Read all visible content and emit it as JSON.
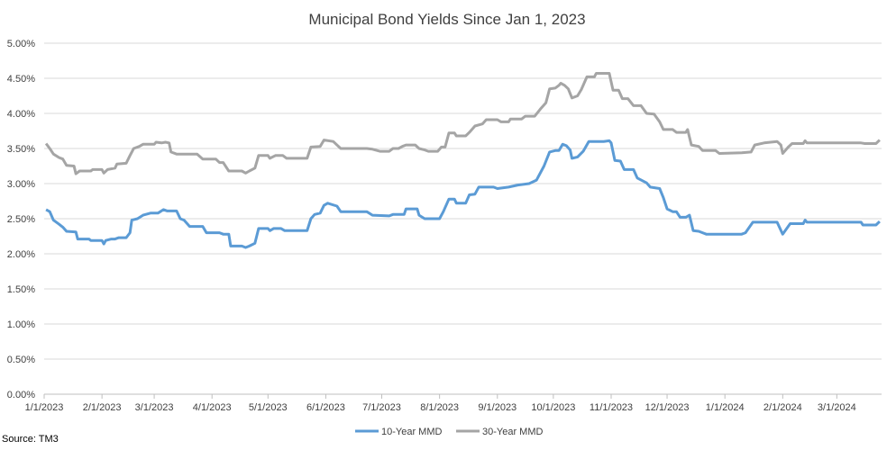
{
  "source_note": "Source: TM3",
  "chart_data": {
    "type": "line",
    "title": "Municipal Bond Yields Since Jan 1, 2023",
    "xlabel": "",
    "ylabel": "",
    "x_range": [
      "2023-01-01",
      "2024-03-25"
    ],
    "ylim": [
      0,
      5
    ],
    "y_ticks": [
      "0.00%",
      "0.50%",
      "1.00%",
      "1.50%",
      "2.00%",
      "2.50%",
      "3.00%",
      "3.50%",
      "4.00%",
      "4.50%",
      "5.00%"
    ],
    "x_tick_labels": [
      "1/1/2023",
      "2/1/2023",
      "3/1/2023",
      "4/1/2023",
      "5/1/2023",
      "6/1/2023",
      "7/1/2023",
      "8/1/2023",
      "9/1/2023",
      "10/1/2023",
      "11/1/2023",
      "12/1/2023",
      "1/1/2024",
      "2/1/2024",
      "3/1/2024"
    ],
    "x_tick_dates": [
      "2023-01-01",
      "2023-02-01",
      "2023-03-01",
      "2023-04-01",
      "2023-05-01",
      "2023-06-01",
      "2023-07-01",
      "2023-08-01",
      "2023-09-01",
      "2023-10-01",
      "2023-11-01",
      "2023-12-01",
      "2024-01-01",
      "2024-02-01",
      "2024-03-01"
    ],
    "grid": "horizontal",
    "legend_position": "bottom",
    "series": [
      {
        "name": "10-Year MMD",
        "color": "#5b9bd5",
        "points": [
          [
            "2023-01-02",
            2.63
          ],
          [
            "2023-01-04",
            2.6
          ],
          [
            "2023-01-06",
            2.48
          ],
          [
            "2023-01-09",
            2.42
          ],
          [
            "2023-01-11",
            2.38
          ],
          [
            "2023-01-13",
            2.32
          ],
          [
            "2023-01-18",
            2.31
          ],
          [
            "2023-01-19",
            2.21
          ],
          [
            "2023-01-25",
            2.21
          ],
          [
            "2023-01-26",
            2.19
          ],
          [
            "2023-02-01",
            2.19
          ],
          [
            "2023-02-02",
            2.14
          ],
          [
            "2023-02-03",
            2.19
          ],
          [
            "2023-02-06",
            2.21
          ],
          [
            "2023-02-08",
            2.21
          ],
          [
            "2023-02-10",
            2.23
          ],
          [
            "2023-02-14",
            2.23
          ],
          [
            "2023-02-16",
            2.3
          ],
          [
            "2023-02-17",
            2.48
          ],
          [
            "2023-02-20",
            2.5
          ],
          [
            "2023-02-23",
            2.55
          ],
          [
            "2023-02-27",
            2.58
          ],
          [
            "2023-03-03",
            2.58
          ],
          [
            "2023-03-06",
            2.63
          ],
          [
            "2023-03-08",
            2.61
          ],
          [
            "2023-03-13",
            2.61
          ],
          [
            "2023-03-15",
            2.5
          ],
          [
            "2023-03-17",
            2.48
          ],
          [
            "2023-03-20",
            2.39
          ],
          [
            "2023-03-27",
            2.39
          ],
          [
            "2023-03-29",
            2.3
          ],
          [
            "2023-04-05",
            2.3
          ],
          [
            "2023-04-07",
            2.28
          ],
          [
            "2023-04-10",
            2.28
          ],
          [
            "2023-04-11",
            2.11
          ],
          [
            "2023-04-17",
            2.11
          ],
          [
            "2023-04-19",
            2.09
          ],
          [
            "2023-04-21",
            2.11
          ],
          [
            "2023-04-24",
            2.15
          ],
          [
            "2023-04-26",
            2.36
          ],
          [
            "2023-05-01",
            2.36
          ],
          [
            "2023-05-02",
            2.33
          ],
          [
            "2023-05-04",
            2.36
          ],
          [
            "2023-05-08",
            2.36
          ],
          [
            "2023-05-10",
            2.33
          ],
          [
            "2023-05-22",
            2.33
          ],
          [
            "2023-05-24",
            2.5
          ],
          [
            "2023-05-26",
            2.56
          ],
          [
            "2023-05-29",
            2.58
          ],
          [
            "2023-05-31",
            2.69
          ],
          [
            "2023-06-02",
            2.72
          ],
          [
            "2023-06-07",
            2.68
          ],
          [
            "2023-06-09",
            2.6
          ],
          [
            "2023-06-23",
            2.6
          ],
          [
            "2023-06-26",
            2.55
          ],
          [
            "2023-07-05",
            2.54
          ],
          [
            "2023-07-07",
            2.56
          ],
          [
            "2023-07-13",
            2.56
          ],
          [
            "2023-07-14",
            2.64
          ],
          [
            "2023-07-20",
            2.64
          ],
          [
            "2023-07-21",
            2.55
          ],
          [
            "2023-07-24",
            2.5
          ],
          [
            "2023-08-01",
            2.5
          ],
          [
            "2023-08-03",
            2.6
          ],
          [
            "2023-08-06",
            2.78
          ],
          [
            "2023-08-09",
            2.78
          ],
          [
            "2023-08-10",
            2.72
          ],
          [
            "2023-08-15",
            2.72
          ],
          [
            "2023-08-17",
            2.84
          ],
          [
            "2023-08-20",
            2.85
          ],
          [
            "2023-08-22",
            2.95
          ],
          [
            "2023-08-30",
            2.95
          ],
          [
            "2023-09-01",
            2.93
          ],
          [
            "2023-09-07",
            2.95
          ],
          [
            "2023-09-12",
            2.98
          ],
          [
            "2023-09-18",
            3.0
          ],
          [
            "2023-09-22",
            3.05
          ],
          [
            "2023-09-26",
            3.25
          ],
          [
            "2023-09-29",
            3.45
          ],
          [
            "2023-10-02",
            3.47
          ],
          [
            "2023-10-04",
            3.47
          ],
          [
            "2023-10-06",
            3.56
          ],
          [
            "2023-10-08",
            3.54
          ],
          [
            "2023-10-10",
            3.48
          ],
          [
            "2023-10-11",
            3.36
          ],
          [
            "2023-10-14",
            3.38
          ],
          [
            "2023-10-17",
            3.46
          ],
          [
            "2023-10-20",
            3.6
          ],
          [
            "2023-10-28",
            3.6
          ],
          [
            "2023-10-31",
            3.61
          ],
          [
            "2023-11-01",
            3.58
          ],
          [
            "2023-11-03",
            3.33
          ],
          [
            "2023-11-06",
            3.32
          ],
          [
            "2023-11-08",
            3.2
          ],
          [
            "2023-11-13",
            3.2
          ],
          [
            "2023-11-15",
            3.08
          ],
          [
            "2023-11-20",
            3.01
          ],
          [
            "2023-11-22",
            2.95
          ],
          [
            "2023-11-27",
            2.93
          ],
          [
            "2023-11-29",
            2.8
          ],
          [
            "2023-12-01",
            2.64
          ],
          [
            "2023-12-04",
            2.6
          ],
          [
            "2023-12-06",
            2.6
          ],
          [
            "2023-12-08",
            2.52
          ],
          [
            "2023-12-11",
            2.52
          ],
          [
            "2023-12-13",
            2.55
          ],
          [
            "2023-12-15",
            2.33
          ],
          [
            "2023-12-18",
            2.32
          ],
          [
            "2023-12-20",
            2.3
          ],
          [
            "2023-12-22",
            2.28
          ],
          [
            "2024-01-10",
            2.28
          ],
          [
            "2024-01-12",
            2.3
          ],
          [
            "2024-01-16",
            2.45
          ],
          [
            "2024-01-29",
            2.45
          ],
          [
            "2024-02-01",
            2.28
          ],
          [
            "2024-02-05",
            2.43
          ],
          [
            "2024-02-12",
            2.43
          ],
          [
            "2024-02-13",
            2.48
          ],
          [
            "2024-02-14",
            2.45
          ],
          [
            "2024-03-14",
            2.45
          ],
          [
            "2024-03-15",
            2.41
          ],
          [
            "2024-03-22",
            2.41
          ],
          [
            "2024-03-24",
            2.46
          ]
        ]
      },
      {
        "name": "30-Year MMD",
        "color": "#a5a5a5",
        "points": [
          [
            "2023-01-02",
            3.57
          ],
          [
            "2023-01-04",
            3.5
          ],
          [
            "2023-01-06",
            3.42
          ],
          [
            "2023-01-09",
            3.37
          ],
          [
            "2023-01-11",
            3.35
          ],
          [
            "2023-01-13",
            3.26
          ],
          [
            "2023-01-17",
            3.25
          ],
          [
            "2023-01-18",
            3.14
          ],
          [
            "2023-01-20",
            3.18
          ],
          [
            "2023-01-26",
            3.18
          ],
          [
            "2023-01-27",
            3.2
          ],
          [
            "2023-02-01",
            3.2
          ],
          [
            "2023-02-02",
            3.15
          ],
          [
            "2023-02-04",
            3.2
          ],
          [
            "2023-02-08",
            3.22
          ],
          [
            "2023-02-09",
            3.28
          ],
          [
            "2023-02-14",
            3.29
          ],
          [
            "2023-02-16",
            3.4
          ],
          [
            "2023-02-18",
            3.5
          ],
          [
            "2023-02-21",
            3.53
          ],
          [
            "2023-02-23",
            3.56
          ],
          [
            "2023-03-01",
            3.56
          ],
          [
            "2023-03-02",
            3.59
          ],
          [
            "2023-03-05",
            3.58
          ],
          [
            "2023-03-07",
            3.59
          ],
          [
            "2023-03-09",
            3.58
          ],
          [
            "2023-03-10",
            3.45
          ],
          [
            "2023-03-13",
            3.42
          ],
          [
            "2023-03-24",
            3.42
          ],
          [
            "2023-03-27",
            3.35
          ],
          [
            "2023-04-03",
            3.35
          ],
          [
            "2023-04-05",
            3.3
          ],
          [
            "2023-04-07",
            3.3
          ],
          [
            "2023-04-10",
            3.18
          ],
          [
            "2023-04-17",
            3.18
          ],
          [
            "2023-04-19",
            3.15
          ],
          [
            "2023-04-21",
            3.18
          ],
          [
            "2023-04-24",
            3.22
          ],
          [
            "2023-04-26",
            3.4
          ],
          [
            "2023-05-01",
            3.4
          ],
          [
            "2023-05-02",
            3.36
          ],
          [
            "2023-05-05",
            3.4
          ],
          [
            "2023-05-09",
            3.4
          ],
          [
            "2023-05-11",
            3.36
          ],
          [
            "2023-05-22",
            3.36
          ],
          [
            "2023-05-24",
            3.52
          ],
          [
            "2023-05-29",
            3.53
          ],
          [
            "2023-05-31",
            3.62
          ],
          [
            "2023-06-05",
            3.6
          ],
          [
            "2023-06-07",
            3.55
          ],
          [
            "2023-06-09",
            3.5
          ],
          [
            "2023-06-23",
            3.5
          ],
          [
            "2023-06-26",
            3.49
          ],
          [
            "2023-06-30",
            3.46
          ],
          [
            "2023-07-05",
            3.46
          ],
          [
            "2023-07-07",
            3.5
          ],
          [
            "2023-07-10",
            3.5
          ],
          [
            "2023-07-12",
            3.53
          ],
          [
            "2023-07-14",
            3.55
          ],
          [
            "2023-07-19",
            3.55
          ],
          [
            "2023-07-21",
            3.5
          ],
          [
            "2023-07-24",
            3.48
          ],
          [
            "2023-07-26",
            3.46
          ],
          [
            "2023-07-31",
            3.46
          ],
          [
            "2023-08-02",
            3.52
          ],
          [
            "2023-08-04",
            3.52
          ],
          [
            "2023-08-06",
            3.72
          ],
          [
            "2023-08-09",
            3.72
          ],
          [
            "2023-08-10",
            3.68
          ],
          [
            "2023-08-15",
            3.68
          ],
          [
            "2023-08-17",
            3.73
          ],
          [
            "2023-08-20",
            3.82
          ],
          [
            "2023-08-24",
            3.85
          ],
          [
            "2023-08-26",
            3.91
          ],
          [
            "2023-09-01",
            3.91
          ],
          [
            "2023-09-03",
            3.88
          ],
          [
            "2023-09-07",
            3.88
          ],
          [
            "2023-09-08",
            3.92
          ],
          [
            "2023-09-14",
            3.92
          ],
          [
            "2023-09-16",
            3.96
          ],
          [
            "2023-09-21",
            3.96
          ],
          [
            "2023-09-24",
            4.06
          ],
          [
            "2023-09-27",
            4.15
          ],
          [
            "2023-09-29",
            4.35
          ],
          [
            "2023-10-02",
            4.36
          ],
          [
            "2023-10-04",
            4.4
          ],
          [
            "2023-10-05",
            4.43
          ],
          [
            "2023-10-07",
            4.4
          ],
          [
            "2023-10-09",
            4.35
          ],
          [
            "2023-10-11",
            4.22
          ],
          [
            "2023-10-14",
            4.25
          ],
          [
            "2023-10-16",
            4.34
          ],
          [
            "2023-10-19",
            4.52
          ],
          [
            "2023-10-23",
            4.52
          ],
          [
            "2023-10-24",
            4.57
          ],
          [
            "2023-10-31",
            4.57
          ],
          [
            "2023-11-02",
            4.33
          ],
          [
            "2023-11-05",
            4.33
          ],
          [
            "2023-11-07",
            4.21
          ],
          [
            "2023-11-10",
            4.21
          ],
          [
            "2023-11-13",
            4.11
          ],
          [
            "2023-11-17",
            4.11
          ],
          [
            "2023-11-20",
            4.0
          ],
          [
            "2023-11-24",
            3.99
          ],
          [
            "2023-11-27",
            3.88
          ],
          [
            "2023-11-29",
            3.77
          ],
          [
            "2023-12-04",
            3.77
          ],
          [
            "2023-12-06",
            3.73
          ],
          [
            "2023-12-11",
            3.73
          ],
          [
            "2023-12-12",
            3.77
          ],
          [
            "2023-12-14",
            3.55
          ],
          [
            "2023-12-18",
            3.53
          ],
          [
            "2023-12-20",
            3.47
          ],
          [
            "2023-12-27",
            3.47
          ],
          [
            "2023-12-29",
            3.43
          ],
          [
            "2024-01-10",
            3.44
          ],
          [
            "2024-01-15",
            3.45
          ],
          [
            "2024-01-17",
            3.55
          ],
          [
            "2024-01-22",
            3.58
          ],
          [
            "2024-01-29",
            3.6
          ],
          [
            "2024-01-31",
            3.55
          ],
          [
            "2024-02-01",
            3.43
          ],
          [
            "2024-02-04",
            3.52
          ],
          [
            "2024-02-06",
            3.57
          ],
          [
            "2024-02-12",
            3.57
          ],
          [
            "2024-02-13",
            3.61
          ],
          [
            "2024-02-14",
            3.58
          ],
          [
            "2024-03-14",
            3.58
          ],
          [
            "2024-03-16",
            3.57
          ],
          [
            "2024-03-22",
            3.57
          ],
          [
            "2024-03-24",
            3.62
          ]
        ]
      }
    ]
  }
}
